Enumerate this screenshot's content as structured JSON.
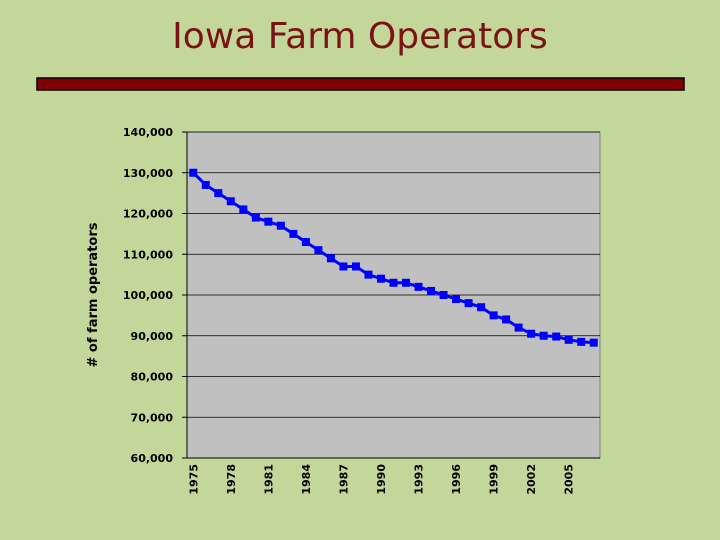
{
  "chart_data": {
    "type": "line",
    "title": "Iowa Farm Operators",
    "y_label": "# of farm operators",
    "categories": [
      "1975",
      null,
      null,
      "1978",
      null,
      null,
      "1981",
      null,
      null,
      "1984",
      null,
      null,
      "1987",
      null,
      null,
      "1990",
      null,
      null,
      "1993",
      null,
      null,
      "1996",
      null,
      null,
      "1999",
      null,
      null,
      "2002",
      null,
      null,
      "2005",
      null,
      null
    ],
    "values": [
      130000,
      127000,
      125000,
      123000,
      121000,
      119000,
      118000,
      117000,
      115000,
      113000,
      111000,
      109000,
      107000,
      107000,
      105000,
      104000,
      103000,
      103000,
      102000,
      101000,
      100000,
      99000,
      98000,
      97000,
      95000,
      94000,
      92000,
      90500,
      90000,
      89800,
      89000,
      88500,
      88300
    ],
    "color": "#0000ff",
    "ylim": [
      60000,
      140000
    ],
    "yticks": [
      {
        "value": 60000,
        "label": "60,000"
      },
      {
        "value": 70000,
        "label": "70,000"
      },
      {
        "value": 80000,
        "label": "80,000"
      },
      {
        "value": 90000,
        "label": "90,000"
      },
      {
        "value": 100000,
        "label": "100,000"
      },
      {
        "value": 110000,
        "label": "110,000"
      },
      {
        "value": 120000,
        "label": "120,000"
      },
      {
        "value": 130000,
        "label": "130,000"
      },
      {
        "value": 140000,
        "label": "140,000"
      }
    ],
    "grid": true
  }
}
